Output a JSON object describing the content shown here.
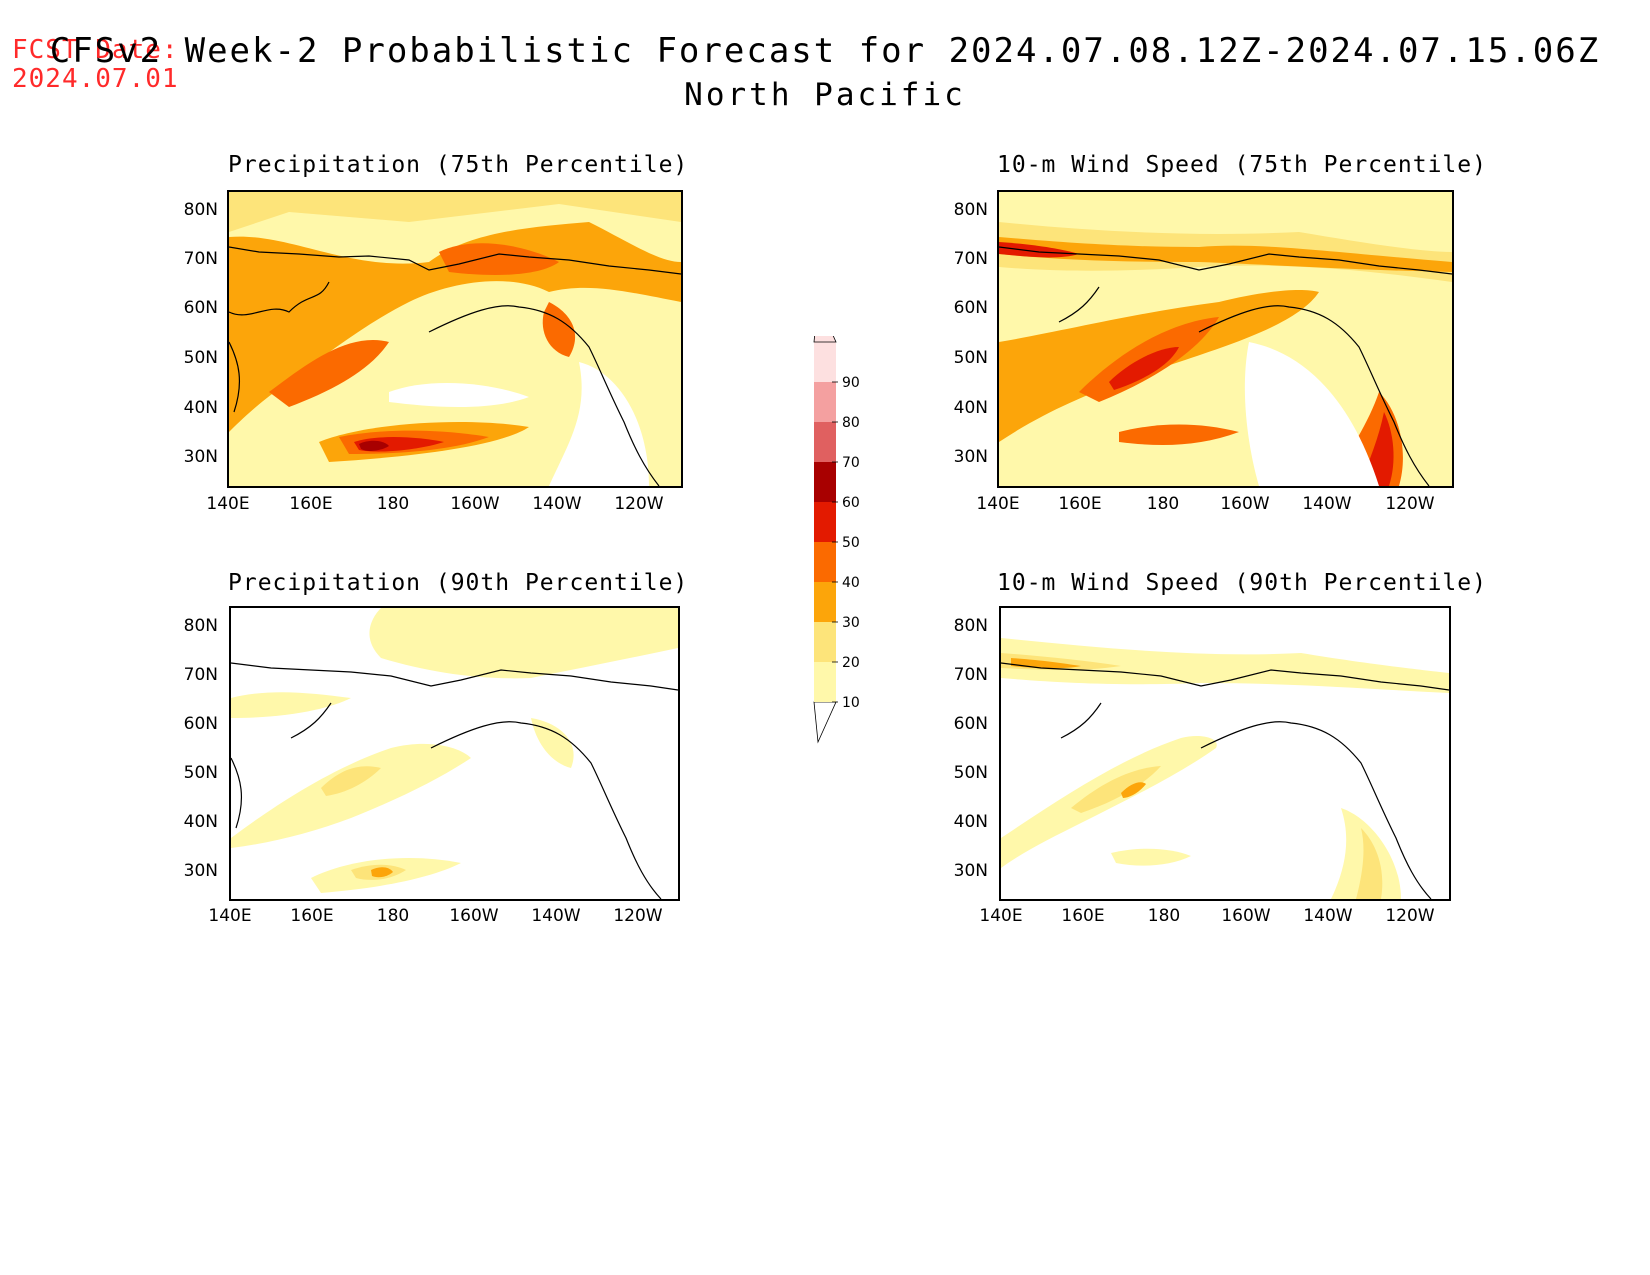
{
  "header": {
    "fcst_label": "FCST Date:",
    "fcst_date": "2024.07.01",
    "title": "CFSv2 Week-2 Probabilistic Forecast for 2024.07.08.12Z-2024.07.15.06Z",
    "subtitle": "North Pacific"
  },
  "panels": [
    {
      "title": "Precipitation (75th Percentile)"
    },
    {
      "title": "10-m Wind Speed (75th Percentile)"
    },
    {
      "title": "Precipitation (90th Percentile)"
    },
    {
      "title": "10-m Wind Speed (90th Percentile)"
    }
  ],
  "axes": {
    "lat_ticks": [
      "80N",
      "70N",
      "60N",
      "50N",
      "40N",
      "30N"
    ],
    "lon_ticks": [
      "140E",
      "160E",
      "180",
      "160W",
      "140W",
      "120W"
    ]
  },
  "colorbar": {
    "levels": [
      "10",
      "20",
      "30",
      "40",
      "50",
      "60",
      "70",
      "80",
      "90"
    ],
    "colors": [
      "#fff8aa",
      "#fde47a",
      "#fca50a",
      "#fb6a00",
      "#e31a00",
      "#a80000",
      "#e06060",
      "#f4a0a0",
      "#fde0e0"
    ]
  }
}
